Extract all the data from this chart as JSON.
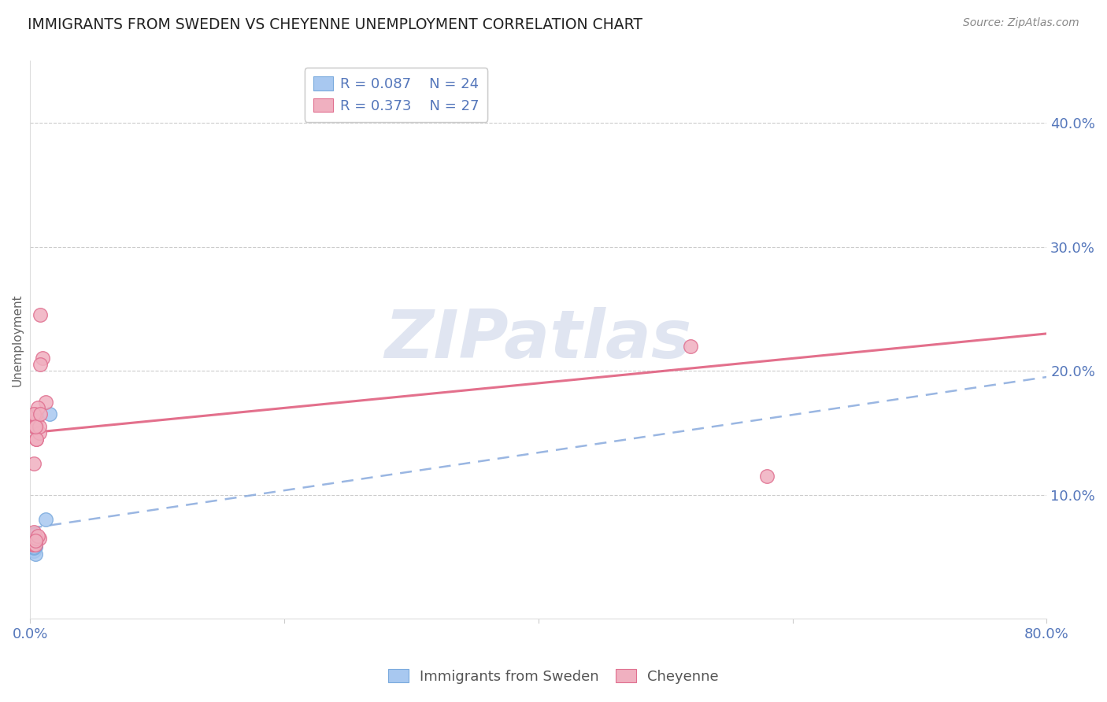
{
  "title": "IMMIGRANTS FROM SWEDEN VS CHEYENNE UNEMPLOYMENT CORRELATION CHART",
  "source": "Source: ZipAtlas.com",
  "ylabel_label": "Unemployment",
  "xlim": [
    0,
    0.8
  ],
  "ylim": [
    0,
    0.45
  ],
  "xticks": [
    0.0,
    0.2,
    0.4,
    0.6,
    0.8
  ],
  "xtick_labels": [
    "0.0%",
    "",
    "",
    "",
    "80.0%"
  ],
  "ytick_positions": [
    0.1,
    0.2,
    0.3,
    0.4
  ],
  "ytick_labels": [
    "10.0%",
    "20.0%",
    "30.0%",
    "40.0%"
  ],
  "grid_color": "#cccccc",
  "background_color": "#ffffff",
  "blue_label": "Immigrants from Sweden",
  "pink_label": "Cheyenne",
  "blue_color": "#a8c8f0",
  "pink_color": "#f0b0c0",
  "blue_edge_color": "#7aaadd",
  "pink_edge_color": "#e07090",
  "blue_line_color": "#88aadd",
  "pink_line_color": "#e06080",
  "text_color": "#5577bb",
  "axis_text_color": "#5577bb",
  "title_color": "#222222",
  "source_color": "#888888",
  "ylabel_color": "#666666",
  "watermark_text": "ZIPatlas",
  "watermark_color": "#ccd5e8",
  "legend_text_color": "#5577bb",
  "blue_R": "R = 0.087",
  "blue_N": "N = 24",
  "pink_R": "R = 0.373",
  "pink_N": "N = 27",
  "blue_x": [
    0.002,
    0.003,
    0.003,
    0.004,
    0.004,
    0.004,
    0.003,
    0.003,
    0.003,
    0.004,
    0.003,
    0.003,
    0.004,
    0.003,
    0.003,
    0.004,
    0.003,
    0.002,
    0.002,
    0.003,
    0.003,
    0.004,
    0.015,
    0.012
  ],
  "blue_y": [
    0.062,
    0.065,
    0.057,
    0.06,
    0.058,
    0.062,
    0.065,
    0.063,
    0.068,
    0.06,
    0.057,
    0.055,
    0.052,
    0.06,
    0.062,
    0.065,
    0.06,
    0.063,
    0.06,
    0.057,
    0.058,
    0.062,
    0.165,
    0.08
  ],
  "pink_x": [
    0.002,
    0.008,
    0.01,
    0.008,
    0.012,
    0.005,
    0.005,
    0.003,
    0.004,
    0.006,
    0.005,
    0.007,
    0.003,
    0.003,
    0.007,
    0.005,
    0.004,
    0.008,
    0.007,
    0.003,
    0.004,
    0.005,
    0.003,
    0.006,
    0.004,
    0.52,
    0.58
  ],
  "pink_y": [
    0.06,
    0.245,
    0.21,
    0.205,
    0.175,
    0.16,
    0.145,
    0.125,
    0.165,
    0.17,
    0.155,
    0.15,
    0.155,
    0.165,
    0.155,
    0.145,
    0.155,
    0.165,
    0.065,
    0.06,
    0.06,
    0.065,
    0.07,
    0.067,
    0.063,
    0.22,
    0.115
  ],
  "blue_line_x0": 0.0,
  "blue_line_x1": 0.8,
  "blue_line_y0": 0.073,
  "blue_line_y1": 0.195,
  "pink_line_x0": 0.0,
  "pink_line_x1": 0.8,
  "pink_line_y0": 0.15,
  "pink_line_y1": 0.23
}
